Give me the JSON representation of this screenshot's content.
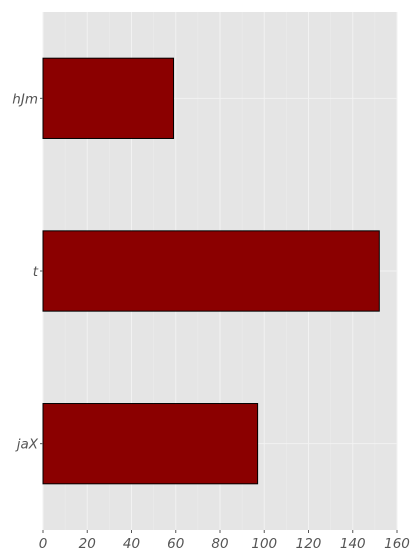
{
  "chart_data": {
    "type": "bar",
    "orientation": "horizontal",
    "categories": [
      "hJm",
      "t",
      "jaX"
    ],
    "values": [
      59,
      152,
      97
    ],
    "title": "",
    "xlabel": "",
    "ylabel": "",
    "xlim": [
      0,
      160
    ],
    "xticks": [
      0,
      20,
      40,
      60,
      80,
      100,
      120,
      140,
      160
    ],
    "xtick_labels": [
      "0",
      "20",
      "40",
      "60",
      "80",
      "100",
      "120",
      "140",
      "160"
    ],
    "grid": true,
    "legend": "none",
    "colors": {
      "bar": "#8b0000",
      "bar_edge": "#000000",
      "background": "#e5e5e5",
      "grid": "#f2f2f2",
      "tick_text": "#555555"
    }
  }
}
